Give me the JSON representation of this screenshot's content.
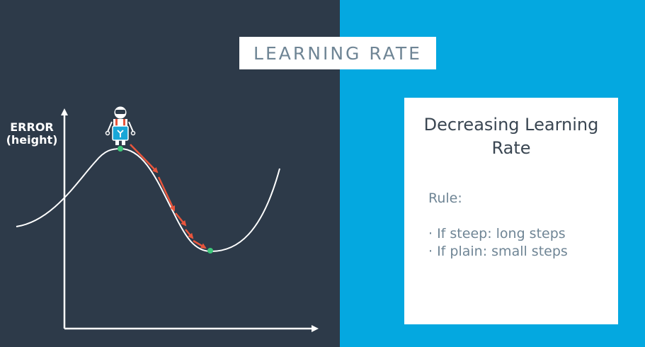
{
  "title": "LEARNING RATE",
  "diagram": {
    "axis_label_line1": "ERROR",
    "axis_label_line2": "(height)",
    "colors": {
      "background": "#2d3a49",
      "curve": "#ffffff",
      "arrows": "#e8553c",
      "points": "#3ec77a"
    },
    "icon": "robot-icon"
  },
  "card": {
    "title_line1": "Decreasing Learning",
    "title_line2": "Rate",
    "rule_label": "Rule:",
    "bullets": [
      "· If steep: long steps",
      "· If plain: small steps"
    ]
  },
  "colors": {
    "accent": "#04a8e0",
    "card_text": "#6f8595"
  }
}
